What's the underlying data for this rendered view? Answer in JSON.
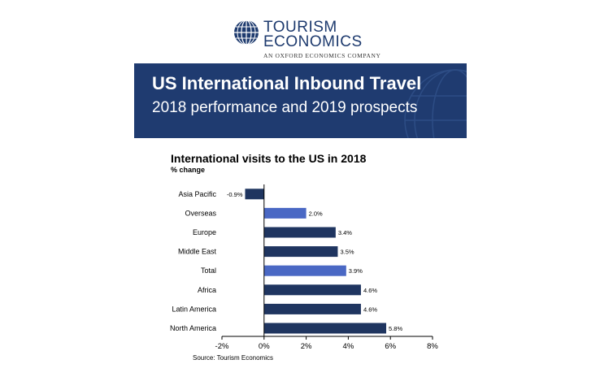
{
  "logo": {
    "line1": "TOURISM",
    "line2": "ECONOMICS",
    "tagline": "AN OXFORD ECONOMICS COMPANY",
    "icon": "globe-icon",
    "color": "#1d3a6e"
  },
  "banner": {
    "title": "US International Inbound Travel",
    "subtitle": "2018 performance and 2019 prospects",
    "color": "#1f3b70"
  },
  "chart_data": {
    "type": "bar",
    "orientation": "horizontal",
    "title": "International visits to the US in 2018",
    "subtitle": "% change",
    "categories": [
      "Asia Pacific",
      "Overseas",
      "Europe",
      "Middle East",
      "Total",
      "Africa",
      "Latin America",
      "North America"
    ],
    "values": [
      -0.9,
      2.0,
      3.4,
      3.5,
      3.9,
      4.6,
      4.6,
      5.8
    ],
    "value_labels": [
      "-0.9%",
      "2.0%",
      "3.4%",
      "3.5%",
      "3.9%",
      "4.6%",
      "4.6%",
      "5.8%"
    ],
    "highlighted": [
      "Overseas",
      "Total"
    ],
    "colors": {
      "default": "#1f3560",
      "highlight": "#4a68c4"
    },
    "xlim": [
      -2,
      8
    ],
    "xticks": [
      -2,
      0,
      2,
      4,
      6,
      8
    ],
    "xtick_labels": [
      "-2%",
      "0%",
      "2%",
      "4%",
      "6%",
      "8%"
    ],
    "grid": false,
    "legend": "none"
  },
  "source": "Source: Tourism Economics"
}
